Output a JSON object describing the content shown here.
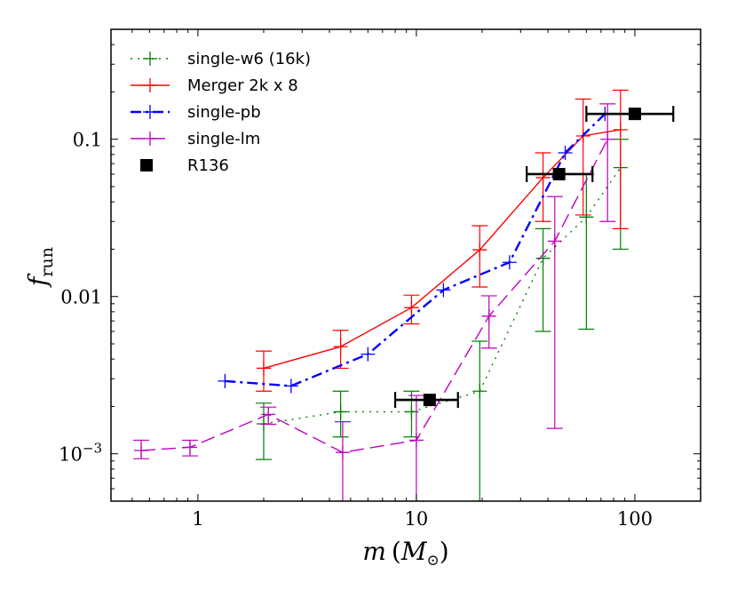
{
  "chart_data": {
    "type": "line",
    "xscale": "log",
    "yscale": "log",
    "xlim": [
      0.4,
      200
    ],
    "ylim": [
      0.0005,
      0.5
    ],
    "xlabel": "m (M⊙)",
    "xlabel_parts": {
      "var": "m",
      "open": "(",
      "unit_main": "M",
      "unit_sub": "⊙",
      "close": ")"
    },
    "ylabel": "f_run",
    "ylabel_parts": {
      "main": "f",
      "sub": "run"
    },
    "x_ticks": [
      {
        "value": 1,
        "label": "1"
      },
      {
        "value": 10,
        "label": "10"
      },
      {
        "value": 100,
        "label": "100"
      }
    ],
    "y_ticks": [
      {
        "value": 0.001,
        "label": "10",
        "sup": "−3"
      },
      {
        "value": 0.01,
        "label": "0.01"
      },
      {
        "value": 0.1,
        "label": "0.1"
      }
    ],
    "legend_position": "top-left",
    "series": [
      {
        "name": "single-w6 (16k)",
        "color": "#008000",
        "dash": "2,6",
        "marker": "plus",
        "points": [
          {
            "x": 2.0,
            "y": 0.00155,
            "lo": 0.00092,
            "hi": 0.0021
          },
          {
            "x": 4.5,
            "y": 0.00185,
            "lo": 0.00128,
            "hi": 0.0025
          },
          {
            "x": 9.5,
            "y": 0.00185,
            "lo": 0.00128,
            "hi": 0.0025
          },
          {
            "x": 19.5,
            "y": 0.0025,
            "lo": 0.0005,
            "hi": 0.0052
          },
          {
            "x": 38,
            "y": 0.0175,
            "lo": 0.006,
            "hi": 0.027
          },
          {
            "x": 60,
            "y": 0.032,
            "lo": 0.0062,
            "hi": 0.06
          },
          {
            "x": 86,
            "y": 0.066,
            "lo": 0.02,
            "hi": 0.1
          }
        ]
      },
      {
        "name": "Merger 2k x 8",
        "color": "#ff0000",
        "dash": "",
        "marker": "plus",
        "points": [
          {
            "x": 2.0,
            "y": 0.0035,
            "lo": 0.0025,
            "hi": 0.0045
          },
          {
            "x": 4.5,
            "y": 0.0048,
            "lo": 0.0035,
            "hi": 0.0061
          },
          {
            "x": 9.5,
            "y": 0.0085,
            "lo": 0.0067,
            "hi": 0.0102
          },
          {
            "x": 19.5,
            "y": 0.0198,
            "lo": 0.0115,
            "hi": 0.0282
          },
          {
            "x": 38,
            "y": 0.057,
            "lo": 0.03,
            "hi": 0.082
          },
          {
            "x": 58,
            "y": 0.105,
            "lo": 0.033,
            "hi": 0.18
          },
          {
            "x": 86,
            "y": 0.115,
            "lo": 0.027,
            "hi": 0.205
          }
        ]
      },
      {
        "name": "single-pb",
        "color": "#0000ff",
        "dash": "12,5,3,5",
        "marker": "plus",
        "points": [
          {
            "x": 1.33,
            "y": 0.0029
          },
          {
            "x": 2.67,
            "y": 0.0027
          },
          {
            "x": 6.0,
            "y": 0.0043
          },
          {
            "x": 13.3,
            "y": 0.011
          },
          {
            "x": 26.7,
            "y": 0.0165
          },
          {
            "x": 48,
            "y": 0.082
          },
          {
            "x": 73,
            "y": 0.145
          }
        ]
      },
      {
        "name": "single-lm",
        "color": "#bf00bf",
        "dash": "16,7",
        "marker": "plus",
        "points": [
          {
            "x": 0.55,
            "y": 0.00105,
            "lo": 0.00093,
            "hi": 0.00122
          },
          {
            "x": 0.92,
            "y": 0.0011,
            "lo": 0.00097,
            "hi": 0.00122
          },
          {
            "x": 2.1,
            "y": 0.00178,
            "lo": 0.00154,
            "hi": 0.00198
          },
          {
            "x": 4.6,
            "y": 0.00102,
            "lo": 0.0005,
            "hi": 0.0016
          },
          {
            "x": 10.0,
            "y": 0.00122,
            "lo": 0.0005,
            "hi": 0.00235
          },
          {
            "x": 21.5,
            "y": 0.0075,
            "lo": 0.0047,
            "hi": 0.0101
          },
          {
            "x": 43,
            "y": 0.0225,
            "lo": 0.00145,
            "hi": 0.0432
          },
          {
            "x": 75,
            "y": 0.1,
            "lo": 0.03,
            "hi": 0.168
          }
        ]
      },
      {
        "name": "R136",
        "color": "#000000",
        "dash": "none",
        "marker": "square",
        "points": [
          {
            "x": 11.5,
            "y": 0.0022,
            "xlo": 8.0,
            "xhi": 15.5
          },
          {
            "x": 45,
            "y": 0.06,
            "xlo": 32,
            "xhi": 64
          },
          {
            "x": 100,
            "y": 0.145,
            "xlo": 60,
            "xhi": 150
          }
        ]
      }
    ]
  }
}
